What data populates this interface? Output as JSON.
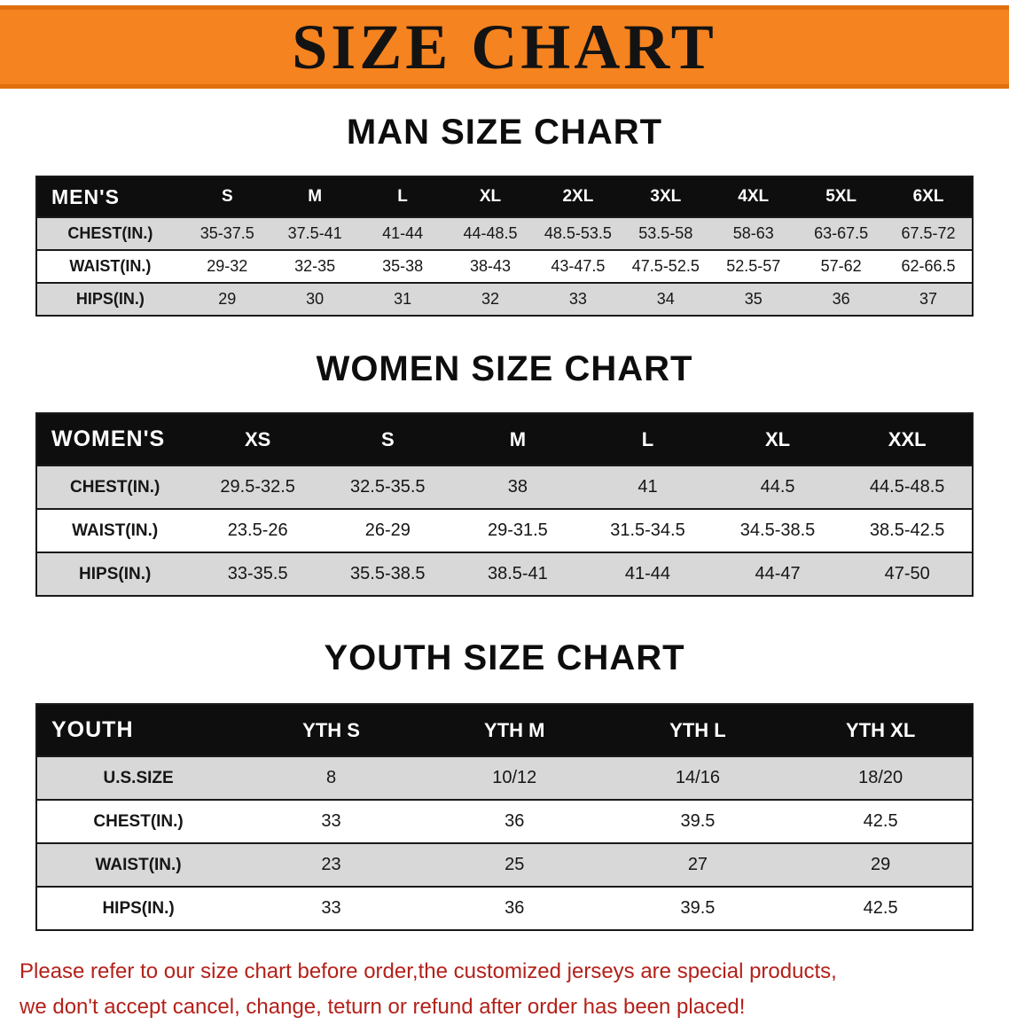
{
  "banner": {
    "title": "SIZE CHART"
  },
  "chart_data": [
    {
      "type": "table",
      "title": "MAN SIZE CHART",
      "corner_label": "MEN'S",
      "columns": [
        "S",
        "M",
        "L",
        "XL",
        "2XL",
        "3XL",
        "4XL",
        "5XL",
        "6XL"
      ],
      "rows": [
        {
          "label": "CHEST(IN.)",
          "values": [
            "35-37.5",
            "37.5-41",
            "41-44",
            "44-48.5",
            "48.5-53.5",
            "53.5-58",
            "58-63",
            "63-67.5",
            "67.5-72"
          ]
        },
        {
          "label": "WAIST(IN.)",
          "values": [
            "29-32",
            "32-35",
            "35-38",
            "38-43",
            "43-47.5",
            "47.5-52.5",
            "52.5-57",
            "57-62",
            "62-66.5"
          ]
        },
        {
          "label": "HIPS(IN.)",
          "values": [
            "29",
            "30",
            "31",
            "32",
            "33",
            "34",
            "35",
            "36",
            "37"
          ]
        }
      ]
    },
    {
      "type": "table",
      "title": "WOMEN SIZE CHART",
      "corner_label": "WOMEN'S",
      "columns": [
        "XS",
        "S",
        "M",
        "L",
        "XL",
        "XXL"
      ],
      "rows": [
        {
          "label": "CHEST(IN.)",
          "values": [
            "29.5-32.5",
            "32.5-35.5",
            "38",
            "41",
            "44.5",
            "44.5-48.5"
          ]
        },
        {
          "label": "WAIST(IN.)",
          "values": [
            "23.5-26",
            "26-29",
            "29-31.5",
            "31.5-34.5",
            "34.5-38.5",
            "38.5-42.5"
          ]
        },
        {
          "label": "HIPS(IN.)",
          "values": [
            "33-35.5",
            "35.5-38.5",
            "38.5-41",
            "41-44",
            "44-47",
            "47-50"
          ]
        }
      ]
    },
    {
      "type": "table",
      "title": "YOUTH SIZE CHART",
      "corner_label": "YOUTH",
      "columns": [
        "YTH S",
        "YTH M",
        "YTH L",
        "YTH XL"
      ],
      "rows": [
        {
          "label": "U.S.SIZE",
          "values": [
            "8",
            "10/12",
            "14/16",
            "18/20"
          ]
        },
        {
          "label": "CHEST(IN.)",
          "values": [
            "33",
            "36",
            "39.5",
            "42.5"
          ]
        },
        {
          "label": "WAIST(IN.)",
          "values": [
            "23",
            "25",
            "27",
            "29"
          ]
        },
        {
          "label": "HIPS(IN.)",
          "values": [
            "33",
            "36",
            "39.5",
            "42.5"
          ]
        }
      ]
    }
  ],
  "footer": {
    "line1": "Please refer to our size chart before order,the customized jerseys are special products,",
    "line2": "we don't accept cancel, change, teturn or refund after order has been placed!"
  },
  "colors": {
    "banner_orange": "#f5831f",
    "header_black": "#0e0e0e",
    "stripe_gray": "#d8d8d8",
    "footer_red": "#b3211a",
    "line_black": "#1a1a1a"
  }
}
